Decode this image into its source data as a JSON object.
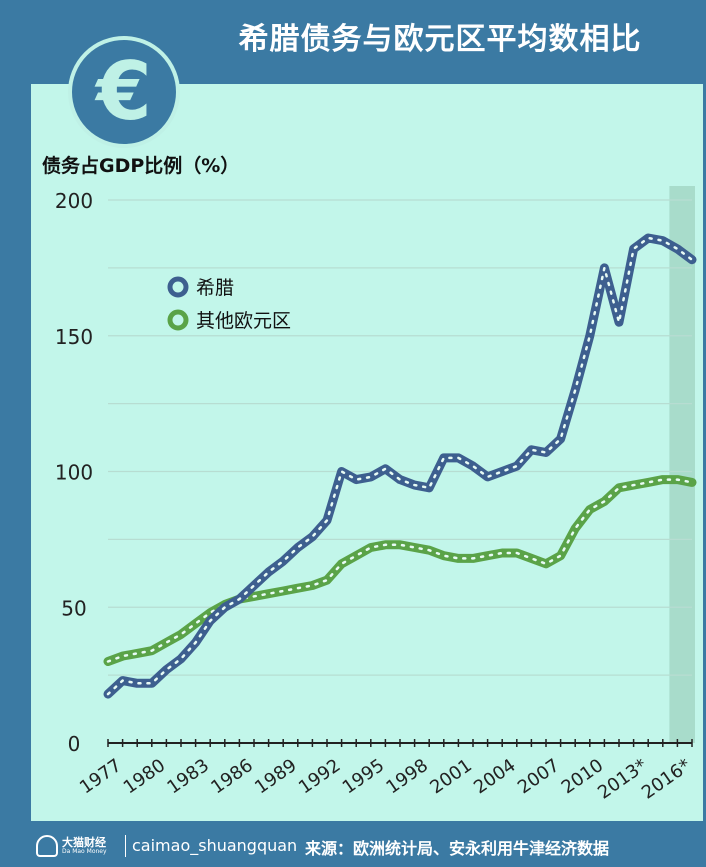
{
  "header": {
    "title": "希腊债务与欧元区平均数相比",
    "badge_symbol": "€"
  },
  "footer": {
    "brand_name": "大猫财经",
    "brand_name_en": "Da Mao Money",
    "handle": "caimao_shuangquan",
    "source": "来源：欧洲统计局、安永利用牛津经济数据"
  },
  "colors": {
    "greece": "#3d5f8f",
    "eurozone": "#5aa348",
    "panel": "#c2f6ea",
    "frame": "#3b7aa3",
    "forecast_band": "#a8dccb"
  },
  "chart_data": {
    "type": "line",
    "ylabel": "债务占GDP比例（%）",
    "xlabel": "",
    "ylim": [
      0,
      200
    ],
    "yticks": [
      0,
      50,
      100,
      150,
      200
    ],
    "grid": true,
    "legend_position": "top-left",
    "x_tick_labels": [
      "1977",
      "1980",
      "1983",
      "1986",
      "1989",
      "1992",
      "1995",
      "1998",
      "2001",
      "2004",
      "2007",
      "2010",
      "2013*",
      "2016*"
    ],
    "forecast_from": 2015,
    "x": [
      1976,
      1977,
      1978,
      1979,
      1980,
      1981,
      1982,
      1983,
      1984,
      1985,
      1986,
      1987,
      1988,
      1989,
      1990,
      1991,
      1992,
      1993,
      1994,
      1995,
      1996,
      1997,
      1998,
      1999,
      2000,
      2001,
      2002,
      2003,
      2004,
      2005,
      2006,
      2007,
      2008,
      2009,
      2010,
      2011,
      2012,
      2013,
      2014,
      2015,
      2016
    ],
    "series": [
      {
        "name": "希腊",
        "values": [
          18,
          23,
          22,
          22,
          27,
          31,
          37,
          45,
          50,
          53,
          58,
          63,
          67,
          72,
          76,
          82,
          100,
          97,
          98,
          101,
          97,
          95,
          94,
          105,
          105,
          102,
          98,
          100,
          102,
          108,
          107,
          112,
          130,
          150,
          175,
          155,
          182,
          186,
          185,
          182,
          178
        ]
      },
      {
        "name": "其他欧元区",
        "values": [
          30,
          32,
          33,
          34,
          37,
          40,
          44,
          48,
          51,
          53,
          54,
          55,
          56,
          57,
          58,
          60,
          66,
          69,
          72,
          73,
          73,
          72,
          71,
          69,
          68,
          68,
          69,
          70,
          70,
          68,
          66,
          69,
          79,
          86,
          89,
          94,
          95,
          96,
          97,
          97,
          96
        ]
      }
    ]
  }
}
